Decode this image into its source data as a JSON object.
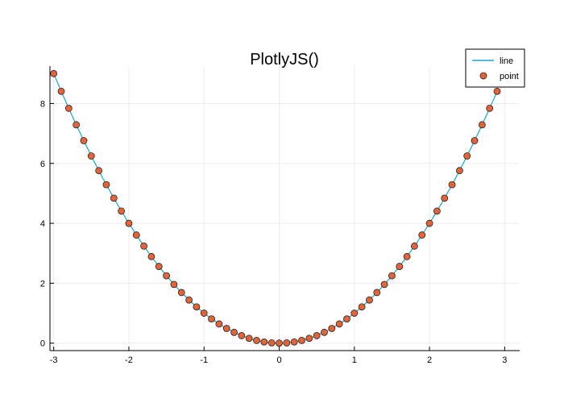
{
  "chart_data": {
    "type": "line",
    "title": "PlotlyJS()",
    "xlabel": "",
    "ylabel": "",
    "xlim": [
      -3.05,
      3.2
    ],
    "ylim": [
      -0.25,
      9.25
    ],
    "x_ticks": [
      -3,
      -2,
      -1,
      0,
      1,
      2,
      3
    ],
    "x_tick_labels": [
      "-3",
      "-2",
      "-1",
      "0",
      "1",
      "2",
      "3"
    ],
    "y_ticks": [
      0,
      2,
      4,
      6,
      8
    ],
    "y_tick_labels": [
      "0",
      "2",
      "4",
      "6",
      "8"
    ],
    "grid": true,
    "legend_position": "top-right",
    "x": [
      -3.0,
      -2.9,
      -2.8,
      -2.7,
      -2.6,
      -2.5,
      -2.4,
      -2.3,
      -2.2,
      -2.1,
      -2.0,
      -1.9,
      -1.8,
      -1.7,
      -1.6,
      -1.5,
      -1.4,
      -1.3,
      -1.2,
      -1.1,
      -1.0,
      -0.9,
      -0.8,
      -0.7,
      -0.6,
      -0.5,
      -0.4,
      -0.3,
      -0.2,
      -0.1,
      0.0,
      0.1,
      0.2,
      0.3,
      0.4,
      0.5,
      0.6,
      0.7,
      0.8,
      0.9,
      1.0,
      1.1,
      1.2,
      1.3,
      1.4,
      1.5,
      1.6,
      1.7,
      1.8,
      1.9,
      2.0,
      2.1,
      2.2,
      2.3,
      2.4,
      2.5,
      2.6,
      2.7,
      2.8,
      2.9
    ],
    "series": [
      {
        "name": "line",
        "kind": "line",
        "color": "#1aa7c7",
        "y": [
          9.0,
          8.41,
          7.84,
          7.29,
          6.76,
          6.25,
          5.76,
          5.29,
          4.84,
          4.41,
          4.0,
          3.61,
          3.24,
          2.89,
          2.56,
          2.25,
          1.96,
          1.69,
          1.44,
          1.21,
          1.0,
          0.81,
          0.64,
          0.49,
          0.36,
          0.25,
          0.16,
          0.09,
          0.04,
          0.01,
          0.0,
          0.01,
          0.04,
          0.09,
          0.16,
          0.25,
          0.36,
          0.49,
          0.64,
          0.81,
          1.0,
          1.21,
          1.44,
          1.69,
          1.96,
          2.25,
          2.56,
          2.89,
          3.24,
          3.61,
          4.0,
          4.41,
          4.84,
          5.29,
          5.76,
          6.25,
          6.76,
          7.29,
          7.84,
          8.41
        ]
      },
      {
        "name": "point",
        "kind": "scatter",
        "color": "#e4643a",
        "y": [
          9.0,
          8.41,
          7.84,
          7.29,
          6.76,
          6.25,
          5.76,
          5.29,
          4.84,
          4.41,
          4.0,
          3.61,
          3.24,
          2.89,
          2.56,
          2.25,
          1.96,
          1.69,
          1.44,
          1.21,
          1.0,
          0.81,
          0.64,
          0.49,
          0.36,
          0.25,
          0.16,
          0.09,
          0.04,
          0.01,
          0.0,
          0.01,
          0.04,
          0.09,
          0.16,
          0.25,
          0.36,
          0.49,
          0.64,
          0.81,
          1.0,
          1.21,
          1.44,
          1.69,
          1.96,
          2.25,
          2.56,
          2.89,
          3.24,
          3.61,
          4.0,
          4.41,
          4.84,
          5.29,
          5.76,
          6.25,
          6.76,
          7.29,
          7.84,
          8.41
        ]
      }
    ]
  }
}
